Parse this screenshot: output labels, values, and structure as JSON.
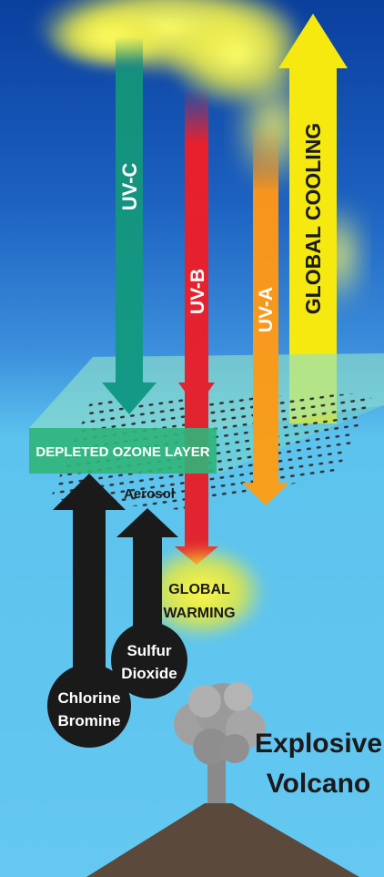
{
  "labels": {
    "uvc": "UV-C",
    "uvb": "UV-B",
    "uva": "UV-A",
    "global_cooling": "GLOBAL COOLING",
    "ozone_layer": "DEPLETED OZONE LAYER",
    "aerosol": "Aerosol",
    "global_warming_1": "GLOBAL",
    "global_warming_2": "WARMING",
    "sulfur_1": "Sulfur",
    "sulfur_2": "Dioxide",
    "chlorine_1": "Chlorine",
    "chlorine_2": "Bromine",
    "volcano_1": "Explosive",
    "volcano_2": "Volcano"
  },
  "colors": {
    "sky_top": "#0a3f9e",
    "sky_mid": "#2a78cf",
    "sky_low": "#5cc3ee",
    "uvc": "#14917c",
    "uvb": "#e8202e",
    "uva": "#f7941d",
    "cooling": "#f5e90f",
    "ozone": "#2fb57a",
    "dark": "#1a1a1a",
    "smoke": "#9a9a9a",
    "mountain": "#5b4a3c"
  }
}
